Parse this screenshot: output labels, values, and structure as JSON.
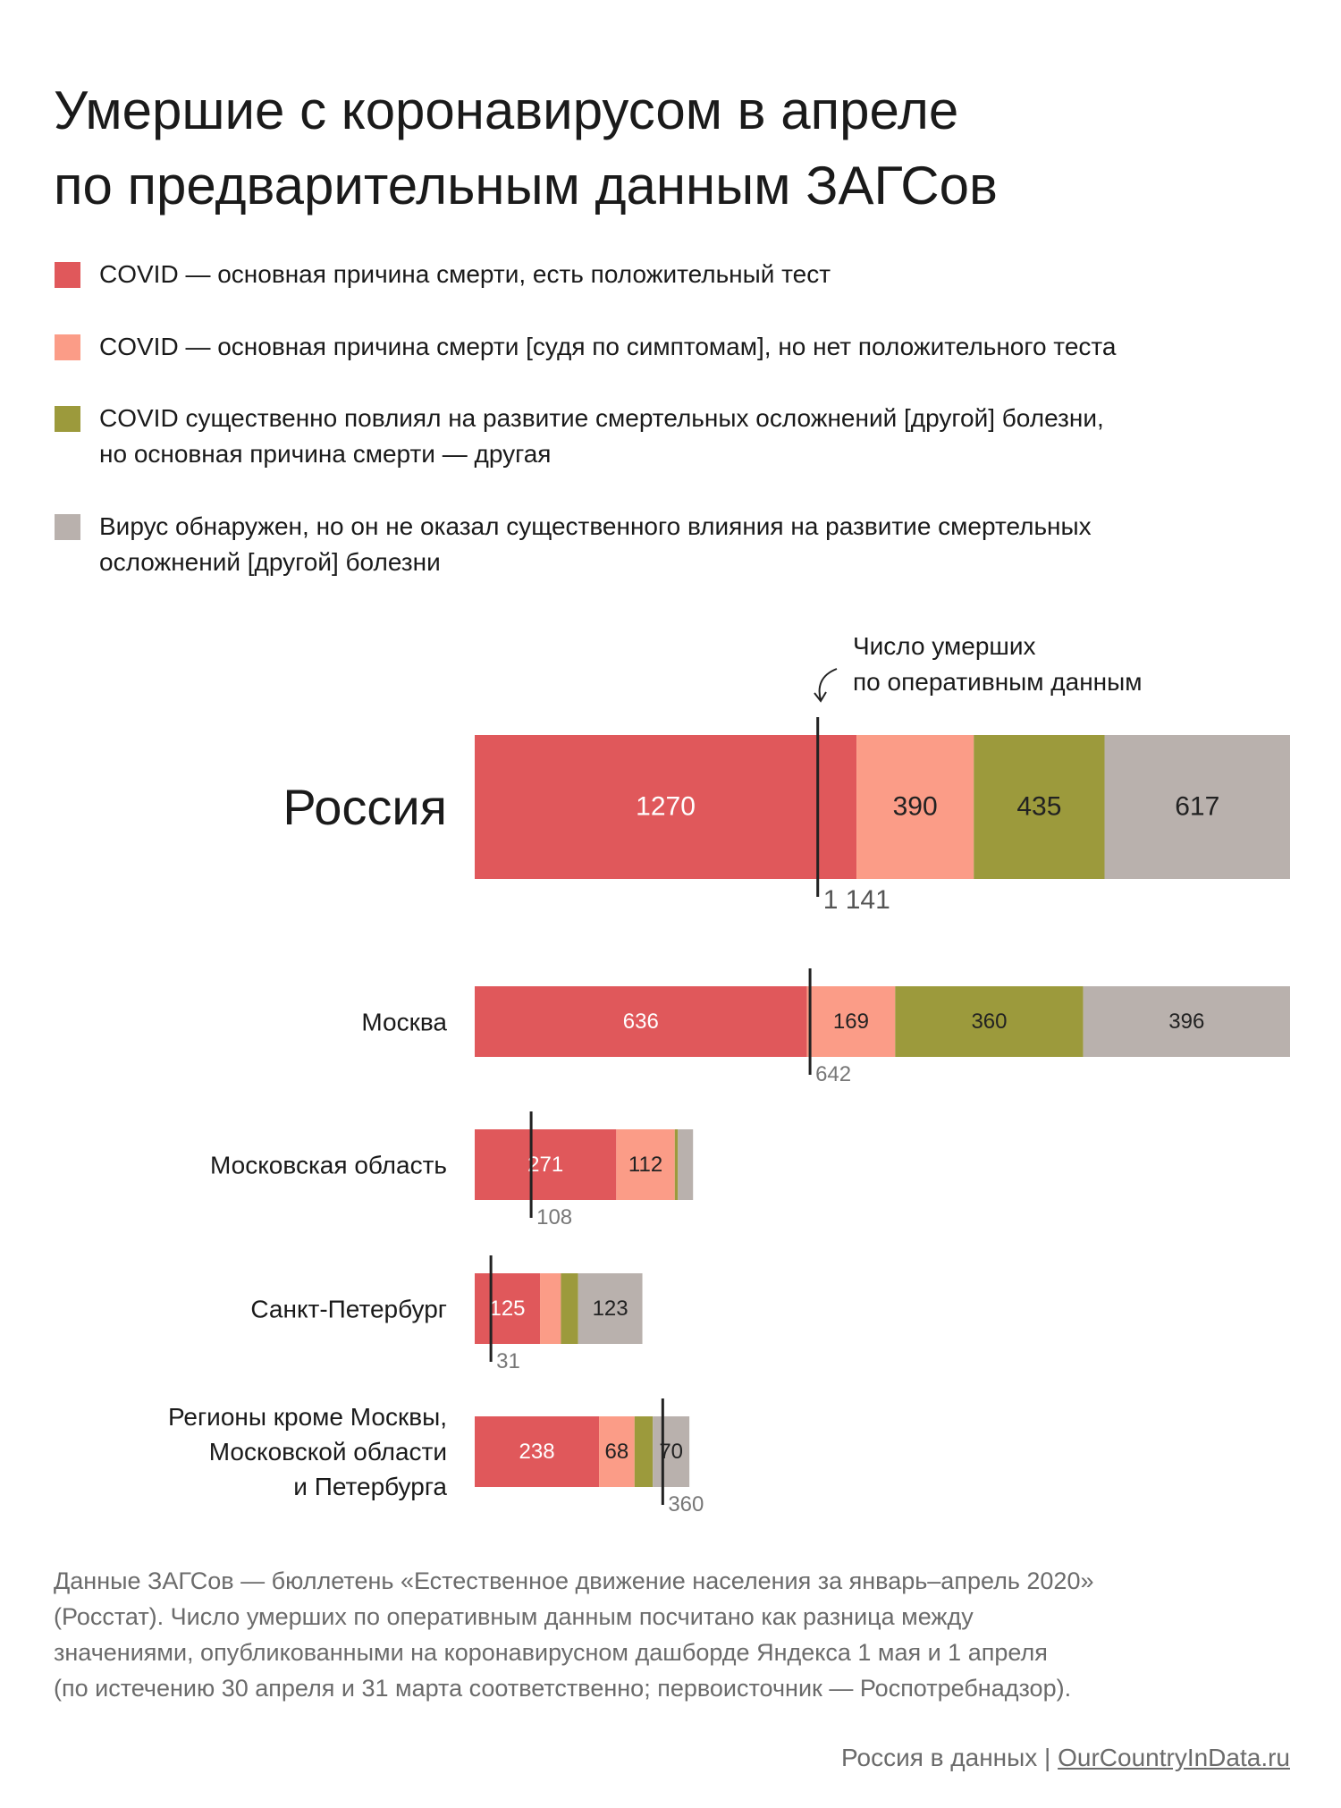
{
  "title": "Умершие с коронавирусом в апреле\nпо предварительным данным ЗАГСов",
  "chart_data": [
    {
      "type": "bar",
      "orientation": "horizontal",
      "stacked": true,
      "categories": [
        "Россия"
      ],
      "xlim": [
        0,
        2712
      ],
      "series": [
        {
          "name": "COVID — основная причина смерти, есть положительный тест",
          "color": "#e0585b",
          "label_color": "#ffffff",
          "values": [
            1270
          ]
        },
        {
          "name": "COVID — основная причина смерти [судя по симптомам], но нет положительного теста",
          "color": "#fb9c87",
          "label_color": "#222222",
          "values": [
            390
          ]
        },
        {
          "name": "COVID существенно повлиял на развитие смертельных осложнений [другой] болезни,\nно основная причина смерти — другая",
          "color": "#9c9a3c",
          "label_color": "#222222",
          "values": [
            435
          ]
        },
        {
          "name": "Вирус обнаружен, но он не оказал существенного влияния на развитие смертельных\nосложнений [другой] болезни",
          "color": "#b9b1ad",
          "label_color": "#222222",
          "values": [
            617
          ]
        }
      ],
      "reference": {
        "label": "Число умерших\nпо оперативным данным",
        "values": [
          1141
        ],
        "value_labels": [
          "1 141"
        ]
      }
    },
    {
      "type": "bar",
      "orientation": "horizontal",
      "stacked": true,
      "categories": [
        "Москва",
        "Московская область",
        "Санкт-Петербург",
        "Регионы кроме Москвы,\nМосковской области\nи Петербурга"
      ],
      "xlim": [
        0,
        1561
      ],
      "series": [
        {
          "color": "#e0585b",
          "label_color": "#ffffff",
          "values": [
            636,
            271,
            125,
            238
          ]
        },
        {
          "color": "#fb9c87",
          "label_color": "#222222",
          "values": [
            169,
            112,
            40,
            68
          ]
        },
        {
          "color": "#9c9a3c",
          "label_color": "#222222",
          "values": [
            360,
            6,
            33,
            35
          ]
        },
        {
          "color": "#b9b1ad",
          "label_color": "#222222",
          "values": [
            396,
            29,
            123,
            70
          ]
        }
      ],
      "reference": {
        "values": [
          642,
          108,
          31,
          360
        ]
      }
    }
  ],
  "footnote": "Данные ЗАГСов — бюллетень «Естественное движение населения за январь–апрель 2020»\n(Росстат). Число умерших по оперативным данным посчитано как разница между\nзначениями, опубликованными на коронавирусном дашборде Яндекса 1 мая и 1 апреля\n(по истечению 30 апреля и 31 марта соответственно; первоисточник — Роспотребнадзор).",
  "credit": {
    "name": "Россия в данных",
    "separator": "|",
    "url": "OurCountryInData.ru"
  }
}
